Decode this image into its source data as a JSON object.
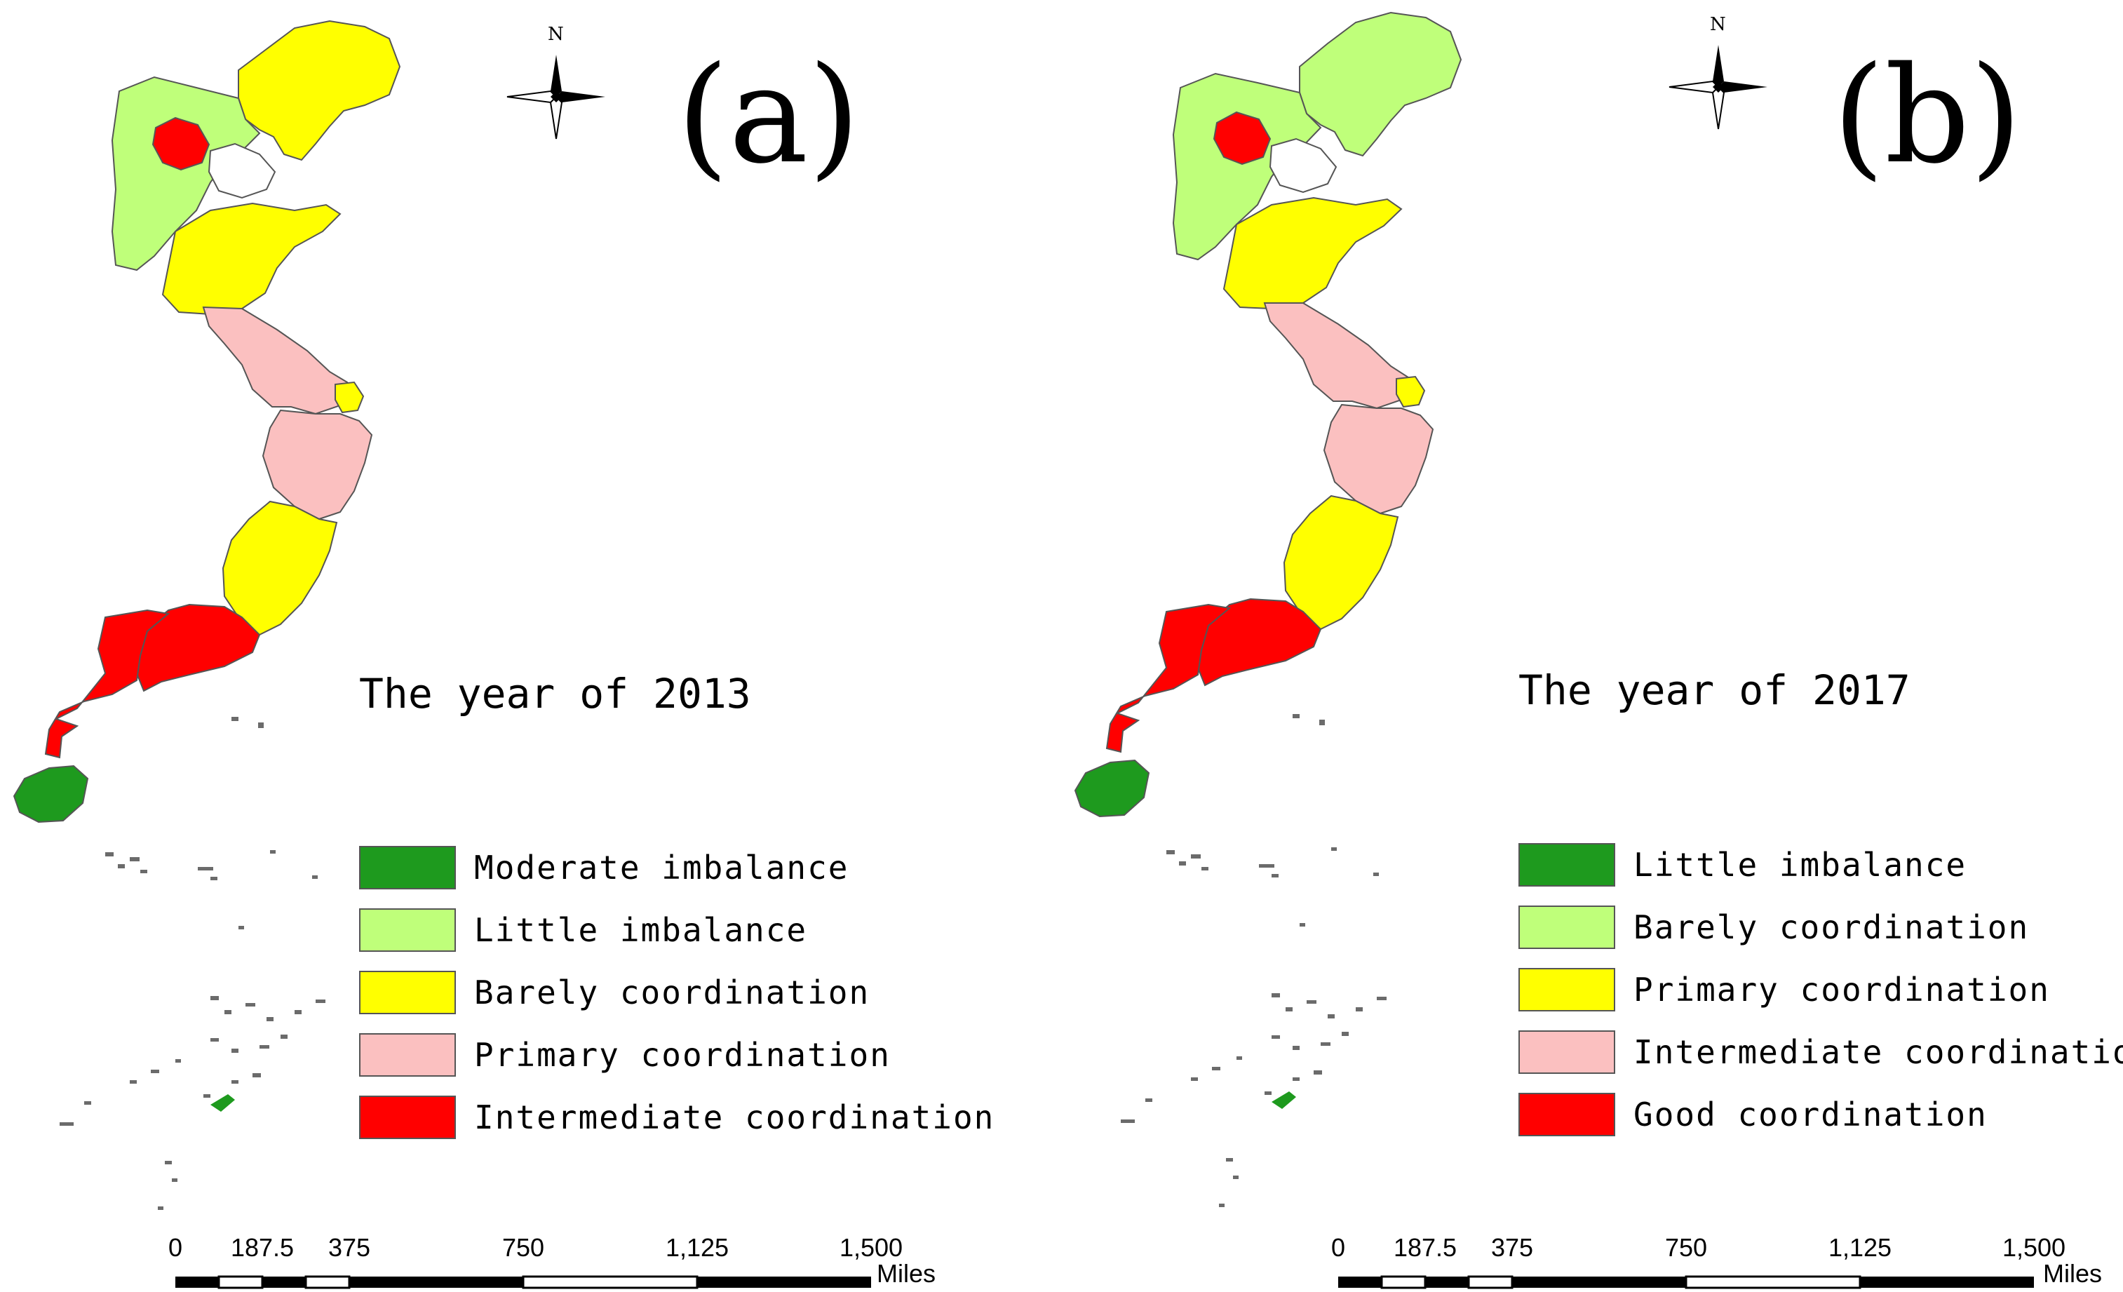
{
  "colors": {
    "moderate_imbalance": "#1e9a1e",
    "little_imbalance": "#bfff7a",
    "barely": "#ffff00",
    "primary": "#fbc0c0",
    "intermediate": "#ff0000",
    "outline": "#555555",
    "islands": "#6b6b6b"
  },
  "panels": [
    {
      "letter": "(a)",
      "north": "N",
      "year_label": "The year of 2013",
      "region_colors": {
        "beijing": "#ff0000",
        "hebei": "#bfff7a",
        "liaoning": "#ffff00",
        "tianjin": "#ffffff",
        "shandong": "#ffff00",
        "jiangsu": "#fbc0c0",
        "shanghai": "#ffff00",
        "zhejiang": "#fbc0c0",
        "fujian": "#ffff00",
        "guangdong": "#ff0000",
        "guangxi": "#ff0000",
        "hainan": "#1e9a1e"
      },
      "legend": [
        {
          "label": "Moderate imbalance",
          "color": "#1e9a1e"
        },
        {
          "label": "Little imbalance",
          "color": "#bfff7a"
        },
        {
          "label": "Barely coordination",
          "color": "#ffff00"
        },
        {
          "label": "Primary coordination",
          "color": "#fbc0c0"
        },
        {
          "label": "Intermediate coordination",
          "color": "#ff0000"
        }
      ],
      "scale_bar": {
        "ticks": [
          "0",
          "187.5",
          "375",
          "750",
          "1,125",
          "1,500"
        ],
        "units": "Miles"
      }
    },
    {
      "letter": "(b)",
      "north": "N",
      "year_label": "The year of 2017",
      "region_colors": {
        "beijing": "#ff0000",
        "hebei": "#bfff7a",
        "liaoning": "#bfff7a",
        "tianjin": "#ffffff",
        "shandong": "#ffff00",
        "jiangsu": "#fbc0c0",
        "shanghai": "#ffff00",
        "zhejiang": "#fbc0c0",
        "fujian": "#ffff00",
        "guangdong": "#ff0000",
        "guangxi": "#ff0000",
        "hainan": "#1e9a1e"
      },
      "legend": [
        {
          "label": "Little imbalance",
          "color": "#1e9a1e"
        },
        {
          "label": "Barely coordination",
          "color": "#bfff7a"
        },
        {
          "label": "Primary coordination",
          "color": "#ffff00"
        },
        {
          "label": "Intermediate coordination",
          "color": "#fbc0c0"
        },
        {
          "label": "Good coordination",
          "color": "#ff0000"
        }
      ],
      "scale_bar": {
        "ticks": [
          "0",
          "187.5",
          "375",
          "750",
          "1,125",
          "1,500"
        ],
        "units": "Miles"
      }
    }
  ]
}
